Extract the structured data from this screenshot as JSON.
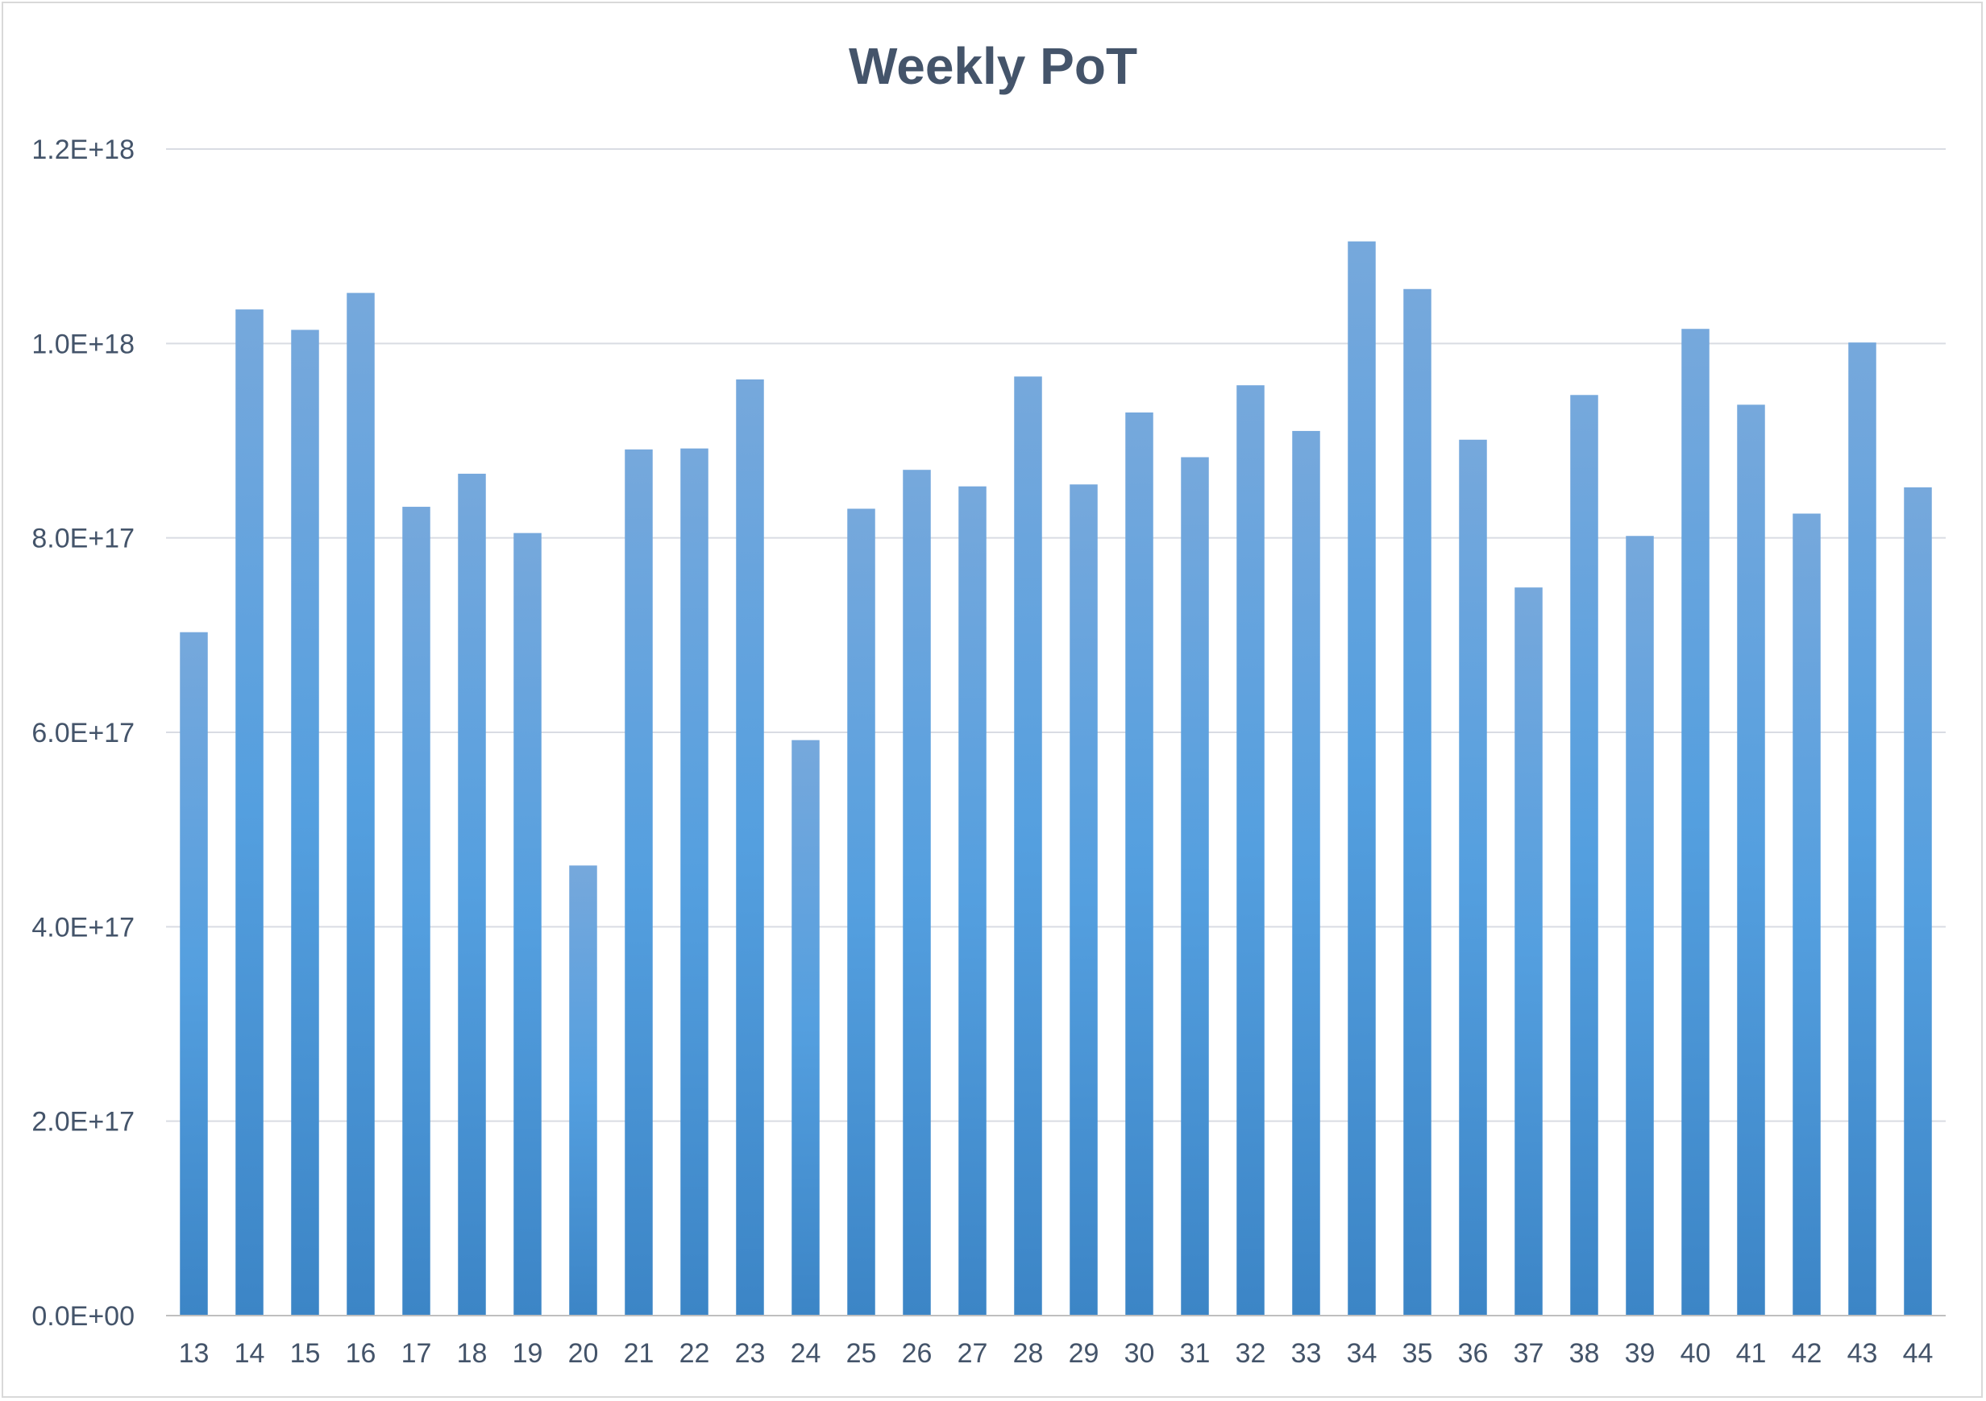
{
  "chart_data": {
    "type": "bar",
    "title": "Weekly PoT",
    "xlabel": "",
    "ylabel": "",
    "categories": [
      "13",
      "14",
      "15",
      "16",
      "17",
      "18",
      "19",
      "20",
      "21",
      "22",
      "23",
      "24",
      "25",
      "26",
      "27",
      "28",
      "29",
      "30",
      "31",
      "32",
      "33",
      "34",
      "35",
      "36",
      "37",
      "38",
      "39",
      "40",
      "41",
      "42",
      "43",
      "44"
    ],
    "series": [
      {
        "values": [
          7.03e+17,
          1.035e+18,
          1.014e+18,
          1.052e+18,
          8.32e+17,
          8.66e+17,
          8.05e+17,
          4.63e+17,
          8.91e+17,
          8.92e+17,
          9.63e+17,
          5.92e+17,
          8.3e+17,
          8.7e+17,
          8.53e+17,
          9.66e+17,
          8.55e+17,
          9.29e+17,
          8.83e+17,
          9.57e+17,
          9.1e+17,
          1.105e+18,
          1.056e+18,
          9.01e+17,
          7.49e+17,
          9.47e+17,
          8.02e+17,
          1.015e+18,
          9.37e+17,
          8.25e+17,
          1.001e+18,
          8.52e+17
        ],
        "color": "#5b9bd5"
      }
    ],
    "ylim": [
      0,
      1.2e+18
    ],
    "yticks": [
      0,
      2e+17,
      4e+17,
      6e+17,
      8e+17,
      1e+18,
      1.2e+18
    ],
    "ytick_labels": [
      "0.0E+00",
      "2.0E+17",
      "4.0E+17",
      "6.0E+17",
      "8.0E+17",
      "1.0E+18",
      "1.2E+18"
    ],
    "grid": true,
    "legend": "none",
    "colors": {
      "bar_top": "#76a8dc",
      "bar_mid": "#549fdf",
      "bar_bottom": "#3c85c6",
      "text": "#44546a",
      "grid": "#d9dce3"
    }
  }
}
